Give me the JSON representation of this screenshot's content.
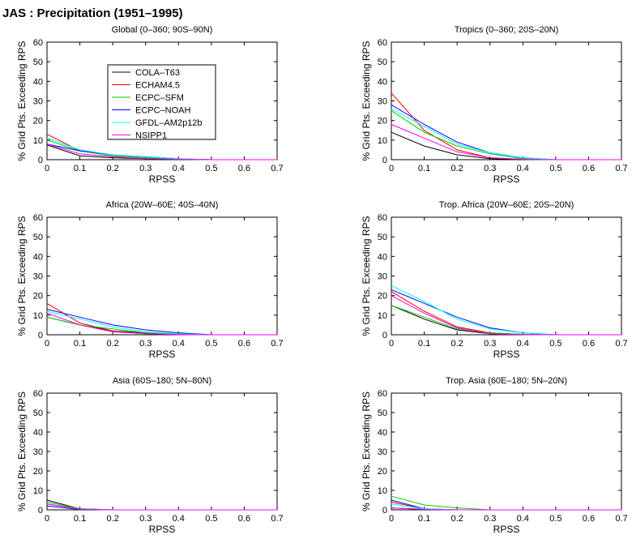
{
  "title": "JAS : Precipitation (1951–1995)",
  "legend_placement": "inside top-left of first panel",
  "chart_data": [
    {
      "type": "line",
      "title": "Global (0–360; 90S–90N)",
      "xlabel": "RPSS",
      "ylabel": "% Grid Pts. Exceeding RPS",
      "xlim": [
        0,
        0.7
      ],
      "ylim": [
        0,
        60
      ],
      "xticks": [
        "0",
        "0.1",
        "0.2",
        "0.3",
        "0.4",
        "0.5",
        "0.6",
        "0.7"
      ],
      "yticks": [
        "0",
        "10",
        "20",
        "30",
        "40",
        "50",
        "60"
      ],
      "x": [
        0,
        0.1,
        0.2,
        0.3,
        0.4,
        0.5,
        0.6,
        0.7
      ],
      "series": [
        {
          "name": "COLA–T63",
          "color": "#000000",
          "values": [
            7.5,
            2,
            1,
            0.5,
            0.2,
            0,
            0,
            0
          ]
        },
        {
          "name": "ECHAM4.5",
          "color": "#ff0000",
          "values": [
            13,
            4.5,
            2,
            1,
            0.3,
            0,
            0,
            0
          ]
        },
        {
          "name": "ECPC–SFM",
          "color": "#00cc00",
          "values": [
            10,
            4.5,
            2,
            1,
            0.3,
            0,
            0,
            0
          ]
        },
        {
          "name": "ECPC–NOAH",
          "color": "#0000ff",
          "values": [
            8,
            4.5,
            2.5,
            1.5,
            0.5,
            0,
            0,
            0
          ]
        },
        {
          "name": "GFDL–AM2p12b",
          "color": "#00ffff",
          "values": [
            11,
            5,
            2.5,
            1.5,
            0.5,
            0,
            0,
            0
          ]
        },
        {
          "name": "NSIPP1",
          "color": "#ff00ff",
          "values": [
            8,
            3,
            1.5,
            0.5,
            0.2,
            0,
            0,
            0
          ]
        }
      ]
    },
    {
      "type": "line",
      "title": "Tropics (0–360; 20S–20N)",
      "xlabel": "RPSS",
      "ylabel": "% Grid Pts. Exceeding RPS",
      "xlim": [
        0,
        0.7
      ],
      "ylim": [
        0,
        60
      ],
      "xticks": [
        "0",
        "0.1",
        "0.2",
        "0.3",
        "0.4",
        "0.5",
        "0.6",
        "0.7"
      ],
      "yticks": [
        "0",
        "10",
        "20",
        "30",
        "40",
        "50",
        "60"
      ],
      "x": [
        0,
        0.1,
        0.2,
        0.3,
        0.4,
        0.5,
        0.6,
        0.7
      ],
      "series": [
        {
          "name": "COLA–T63",
          "color": "#000000",
          "values": [
            14,
            7,
            2.5,
            0.5,
            0,
            0,
            0,
            0
          ]
        },
        {
          "name": "ECHAM4.5",
          "color": "#ff0000",
          "values": [
            34,
            15,
            5,
            1,
            0.2,
            0,
            0,
            0
          ]
        },
        {
          "name": "ECPC–SFM",
          "color": "#00cc00",
          "values": [
            25,
            14,
            7,
            3,
            0.5,
            0,
            0,
            0
          ]
        },
        {
          "name": "ECPC–NOAH",
          "color": "#0000ff",
          "values": [
            28,
            18,
            9,
            3.5,
            1,
            0,
            0,
            0
          ]
        },
        {
          "name": "GFDL–AM2p12b",
          "color": "#00ffff",
          "values": [
            26,
            17,
            8,
            3.5,
            1,
            0,
            0,
            0
          ]
        },
        {
          "name": "NSIPP1",
          "color": "#ff00ff",
          "values": [
            18,
            11,
            4,
            1,
            0.2,
            0,
            0,
            0
          ]
        }
      ]
    },
    {
      "type": "line",
      "title": "Africa (20W–60E; 40S–40N)",
      "xlabel": "RPSS",
      "ylabel": "% Grid Pts. Exceeding RPS",
      "xlim": [
        0,
        0.7
      ],
      "ylim": [
        0,
        60
      ],
      "xticks": [
        "0",
        "0.1",
        "0.2",
        "0.3",
        "0.4",
        "0.5",
        "0.6",
        "0.7"
      ],
      "yticks": [
        "0",
        "10",
        "20",
        "30",
        "40",
        "50",
        "60"
      ],
      "x": [
        0,
        0.1,
        0.2,
        0.3,
        0.4,
        0.5,
        0.6,
        0.7
      ],
      "series": [
        {
          "name": "COLA–T63",
          "color": "#000000",
          "values": [
            9,
            5,
            2,
            1,
            0.2,
            0,
            0,
            0
          ]
        },
        {
          "name": "ECHAM4.5",
          "color": "#ff0000",
          "values": [
            16,
            6,
            2,
            0.5,
            0.2,
            0,
            0,
            0
          ]
        },
        {
          "name": "ECPC–SFM",
          "color": "#00cc00",
          "values": [
            9,
            5,
            3,
            1,
            0.2,
            0,
            0,
            0
          ]
        },
        {
          "name": "ECPC–NOAH",
          "color": "#0000ff",
          "values": [
            13,
            9,
            5,
            2.5,
            1,
            0,
            0,
            0
          ]
        },
        {
          "name": "GFDL–AM2p12b",
          "color": "#00ffff",
          "values": [
            12,
            8,
            4,
            1.5,
            0.5,
            0,
            0,
            0
          ]
        },
        {
          "name": "NSIPP1",
          "color": "#ff00ff",
          "values": [
            11,
            5,
            1.5,
            0.5,
            0.1,
            0,
            0,
            0
          ]
        }
      ]
    },
    {
      "type": "line",
      "title": "Trop. Africa (20W–60E; 20S–20N)",
      "xlabel": "RPSS",
      "ylabel": "% Grid Pts. Exceeding RPS",
      "xlim": [
        0,
        0.7
      ],
      "ylim": [
        0,
        60
      ],
      "xticks": [
        "0",
        "0.1",
        "0.2",
        "0.3",
        "0.4",
        "0.5",
        "0.6",
        "0.7"
      ],
      "yticks": [
        "0",
        "10",
        "20",
        "30",
        "40",
        "50",
        "60"
      ],
      "x": [
        0,
        0.1,
        0.2,
        0.3,
        0.4,
        0.5,
        0.6,
        0.7
      ],
      "series": [
        {
          "name": "COLA–T63",
          "color": "#000000",
          "values": [
            15,
            8,
            2.5,
            0.5,
            0,
            0,
            0,
            0
          ]
        },
        {
          "name": "ECHAM4.5",
          "color": "#ff0000",
          "values": [
            22,
            12,
            4,
            1,
            0.2,
            0,
            0,
            0
          ]
        },
        {
          "name": "ECPC–SFM",
          "color": "#00cc00",
          "values": [
            15,
            9,
            3,
            1,
            0.2,
            0,
            0,
            0
          ]
        },
        {
          "name": "ECPC–NOAH",
          "color": "#0000ff",
          "values": [
            23,
            16,
            9,
            3.5,
            1,
            0,
            0,
            0
          ]
        },
        {
          "name": "GFDL–AM2p12b",
          "color": "#00ffff",
          "values": [
            25,
            17,
            8,
            3,
            1,
            0,
            0,
            0
          ]
        },
        {
          "name": "NSIPP1",
          "color": "#ff00ff",
          "values": [
            20,
            11,
            3.5,
            0.5,
            0.1,
            0,
            0,
            0
          ]
        }
      ]
    },
    {
      "type": "line",
      "title": "Asia (60S–180; 5N–80N)",
      "xlabel": "RPSS",
      "ylabel": "% Grid Pts. Exceeding RPS",
      "xlim": [
        0,
        0.7
      ],
      "ylim": [
        0,
        60
      ],
      "xticks": [
        "0",
        "0.1",
        "0.2",
        "0.3",
        "0.4",
        "0.5",
        "0.6",
        "0.7"
      ],
      "yticks": [
        "0",
        "10",
        "20",
        "30",
        "40",
        "50",
        "60"
      ],
      "x": [
        0,
        0.1,
        0.2,
        0.3,
        0.4,
        0.5,
        0.6,
        0.7
      ],
      "series": [
        {
          "name": "COLA–T63",
          "color": "#000000",
          "values": [
            5,
            0.5,
            0,
            0,
            0,
            0,
            0,
            0
          ]
        },
        {
          "name": "ECHAM4.5",
          "color": "#ff0000",
          "values": [
            3,
            0.5,
            0,
            0,
            0,
            0,
            0,
            0
          ]
        },
        {
          "name": "ECPC–SFM",
          "color": "#00cc00",
          "values": [
            4,
            0.5,
            0,
            0,
            0,
            0,
            0,
            0
          ]
        },
        {
          "name": "ECPC–NOAH",
          "color": "#0000ff",
          "values": [
            2,
            0.2,
            0,
            0,
            0,
            0,
            0,
            0
          ]
        },
        {
          "name": "GFDL–AM2p12b",
          "color": "#00ffff",
          "values": [
            3,
            0.3,
            0,
            0,
            0,
            0,
            0,
            0
          ]
        },
        {
          "name": "NSIPP1",
          "color": "#ff00ff",
          "values": [
            3,
            0.3,
            0,
            0,
            0,
            0,
            0,
            0
          ]
        }
      ]
    },
    {
      "type": "line",
      "title": "Trop. Asia (60E–180; 5N–20N)",
      "xlabel": "RPSS",
      "ylabel": "% Grid Pts. Exceeding RPS",
      "xlim": [
        0,
        0.7
      ],
      "ylim": [
        0,
        60
      ],
      "xticks": [
        "0",
        "0.1",
        "0.2",
        "0.3",
        "0.4",
        "0.5",
        "0.6",
        "0.7"
      ],
      "yticks": [
        "0",
        "10",
        "20",
        "30",
        "40",
        "50",
        "60"
      ],
      "x": [
        0,
        0.1,
        0.2,
        0.3,
        0.4,
        0.5,
        0.6,
        0.7
      ],
      "series": [
        {
          "name": "COLA–T63",
          "color": "#000000",
          "values": [
            1,
            0.3,
            0,
            0,
            0,
            0,
            0,
            0
          ]
        },
        {
          "name": "ECHAM4.5",
          "color": "#ff0000",
          "values": [
            4,
            0.5,
            0,
            0,
            0,
            0,
            0,
            0
          ]
        },
        {
          "name": "ECPC–SFM",
          "color": "#00cc00",
          "values": [
            7,
            2.5,
            1,
            0,
            0,
            0,
            0,
            0
          ]
        },
        {
          "name": "ECPC–NOAH",
          "color": "#0000ff",
          "values": [
            5,
            0.5,
            0,
            0,
            0,
            0,
            0,
            0
          ]
        },
        {
          "name": "GFDL–AM2p12b",
          "color": "#00ffff",
          "values": [
            3,
            0.5,
            0,
            0,
            0,
            0,
            0,
            0
          ]
        },
        {
          "name": "NSIPP1",
          "color": "#ff00ff",
          "values": [
            1,
            0.2,
            0,
            0,
            0,
            0,
            0,
            0
          ]
        }
      ]
    }
  ]
}
